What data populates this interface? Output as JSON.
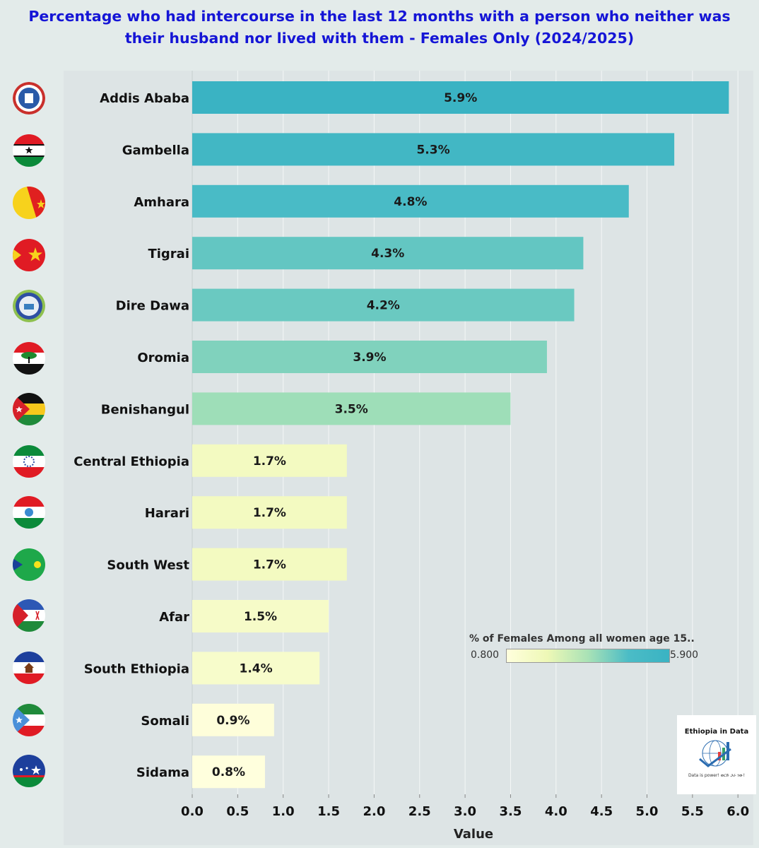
{
  "chart_data": {
    "type": "bar",
    "orientation": "horizontal",
    "title": "Percentage who had intercourse in the last 12 months with a person who neither was their husband nor lived with them - Females Only (2024/2025)",
    "categories": [
      "Addis Ababa",
      "Gambella",
      "Amhara",
      "Tigrai",
      "Dire Dawa",
      "Oromia",
      "Benishangul",
      "Central Ethiopia",
      "Harari",
      "South West",
      "Afar",
      "South Ethiopia",
      "Somali",
      "Sidama"
    ],
    "values": [
      5.9,
      5.3,
      4.8,
      4.3,
      4.2,
      3.9,
      3.5,
      1.7,
      1.7,
      1.7,
      1.5,
      1.4,
      0.9,
      0.8
    ],
    "labels": [
      "5.9%",
      "5.3%",
      "4.8%",
      "4.3%",
      "4.2%",
      "3.9%",
      "3.5%",
      "1.7%",
      "1.7%",
      "1.7%",
      "1.5%",
      "1.4%",
      "0.9%",
      "0.8%"
    ],
    "xlabel": "Value",
    "ylabel": "",
    "xlim": [
      0,
      6.0
    ],
    "xticks": [
      "0.0",
      "0.5",
      "1.0",
      "1.5",
      "2.0",
      "2.5",
      "3.0",
      "3.5",
      "4.0",
      "4.5",
      "5.0",
      "5.5",
      "6.0"
    ],
    "color_scale": {
      "min": 0.8,
      "max": 5.9,
      "colors": [
        "#ffffdd",
        "#eef8b6",
        "#a9e2b6",
        "#4bbcc6",
        "#3ab3c3"
      ]
    },
    "grid": true
  },
  "legend": {
    "title": "% of Females Among all women age 15..",
    "min_label": "0.800",
    "max_label": "5.900"
  },
  "logo": {
    "title": "Ethiopia in Data",
    "tagline": "Data is power! ወርድ ጋራ ነው!"
  },
  "flags": [
    "addis-ababa-emblem",
    "gambella-flag",
    "amhara-flag",
    "tigrai-flag",
    "dire-dawa-emblem",
    "oromia-flag",
    "benishangul-flag",
    "central-ethiopia-flag",
    "harari-flag",
    "south-west-flag",
    "afar-flag",
    "south-ethiopia-flag",
    "somali-flag",
    "sidama-flag"
  ]
}
